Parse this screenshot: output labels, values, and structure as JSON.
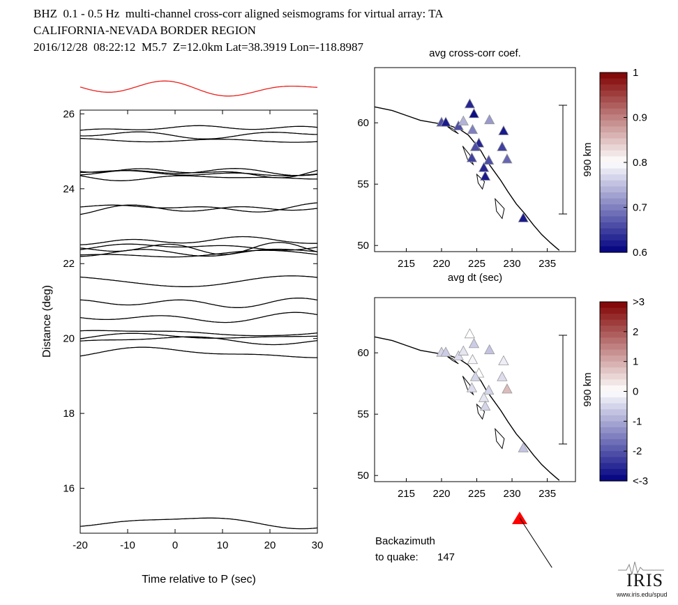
{
  "header": {
    "line1": "BHZ  0.1 - 0.5 Hz  multi-channel cross-corr aligned seismograms for virtual array: TA",
    "line2": "CALIFORNIA-NEVADA BORDER REGION",
    "line3": "2016/12/28  08:22:12  M5.7  Z=12.0km Lat=38.3919 Lon=-118.8987"
  },
  "chart_data": [
    {
      "type": "line",
      "panel": "aligned-seismograms",
      "title": "",
      "xlabel": "Time relative to P (sec)",
      "ylabel": "Distance (deg)",
      "xlim": [
        -20,
        30
      ],
      "ylim": [
        14.8,
        26.1
      ],
      "xticks": [
        -20,
        -10,
        0,
        10,
        20,
        30
      ],
      "yticks": [
        16,
        18,
        20,
        22,
        24,
        26
      ],
      "trace_distances_deg": [
        25.6,
        25.45,
        25.3,
        24.45,
        24.3,
        24.4,
        24.45,
        23.5,
        23.45,
        22.6,
        22.45,
        22.3,
        22.25,
        22.4,
        21.55,
        20.95,
        20.55,
        20.15,
        20.05,
        19.95,
        19.6,
        15.1
      ],
      "stack_trace_color": "#e8201c",
      "trace_color": "#000000"
    },
    {
      "type": "scatter",
      "panel": "avg-cross-corr-coef-map",
      "title": "avg cross-corr coef.",
      "xlabel": "avg dt (sec)",
      "ylabel": "",
      "xlim": [
        210.5,
        239
      ],
      "ylim": [
        49.5,
        64.5
      ],
      "xticks": [
        215,
        220,
        225,
        230,
        235
      ],
      "yticks": [
        50,
        55,
        60
      ],
      "scale_bar_label": "990 km",
      "colorbar": {
        "ticks": [
          "1",
          "0.9",
          "0.8",
          "0.7",
          "0.6"
        ],
        "min_color": "#000080",
        "mid_color": "#ffffff",
        "max_color": "#800000"
      },
      "stations": [
        {
          "x": 224.0,
          "y": 61.5,
          "value": 0.63
        },
        {
          "x": 220.0,
          "y": 60.0,
          "value": 0.66
        },
        {
          "x": 220.6,
          "y": 60.0,
          "value": 0.62
        },
        {
          "x": 222.4,
          "y": 59.7,
          "value": 0.66
        },
        {
          "x": 223.1,
          "y": 60.1,
          "value": 0.74
        },
        {
          "x": 224.6,
          "y": 60.7,
          "value": 0.61
        },
        {
          "x": 226.8,
          "y": 60.2,
          "value": 0.72
        },
        {
          "x": 228.8,
          "y": 59.3,
          "value": 0.62
        },
        {
          "x": 224.4,
          "y": 59.4,
          "value": 0.7
        },
        {
          "x": 225.3,
          "y": 58.3,
          "value": 0.63
        },
        {
          "x": 224.8,
          "y": 58.0,
          "value": 0.66
        },
        {
          "x": 228.6,
          "y": 58.0,
          "value": 0.65
        },
        {
          "x": 229.3,
          "y": 57.0,
          "value": 0.68
        },
        {
          "x": 224.3,
          "y": 57.1,
          "value": 0.65
        },
        {
          "x": 226.7,
          "y": 56.9,
          "value": 0.66
        },
        {
          "x": 226.0,
          "y": 56.3,
          "value": 0.63
        },
        {
          "x": 226.2,
          "y": 55.6,
          "value": 0.62
        },
        {
          "x": 231.6,
          "y": 52.2,
          "value": 0.62
        }
      ]
    },
    {
      "type": "scatter",
      "panel": "avg-dt-map",
      "title": "",
      "xlabel": "",
      "ylabel": "",
      "xlim": [
        210.5,
        239
      ],
      "ylim": [
        49.5,
        64.5
      ],
      "xticks": [
        215,
        220,
        225,
        230,
        235
      ],
      "yticks": [
        50,
        55,
        60
      ],
      "scale_bar_label": "990 km",
      "colorbar": {
        "ticks": [
          ">3",
          "2",
          "1",
          "0",
          "-1",
          "-2",
          "<-3"
        ],
        "min_color": "#000080",
        "mid_color": "#ffffff",
        "max_color": "#800000"
      },
      "stations": [
        {
          "x": 224.0,
          "y": 61.5,
          "value": 0.0
        },
        {
          "x": 220.0,
          "y": 60.0,
          "value": -0.5
        },
        {
          "x": 220.6,
          "y": 60.0,
          "value": -0.6
        },
        {
          "x": 222.4,
          "y": 59.7,
          "value": -0.4
        },
        {
          "x": 223.1,
          "y": 60.1,
          "value": -0.3
        },
        {
          "x": 224.6,
          "y": 60.7,
          "value": -0.6
        },
        {
          "x": 226.8,
          "y": 60.2,
          "value": -0.7
        },
        {
          "x": 228.8,
          "y": 59.3,
          "value": -0.2
        },
        {
          "x": 224.4,
          "y": 59.4,
          "value": -0.1
        },
        {
          "x": 225.3,
          "y": 58.3,
          "value": 0.0
        },
        {
          "x": 224.8,
          "y": 58.0,
          "value": -0.5
        },
        {
          "x": 228.6,
          "y": 58.0,
          "value": -0.4
        },
        {
          "x": 229.3,
          "y": 57.0,
          "value": 0.8
        },
        {
          "x": 224.3,
          "y": 57.1,
          "value": -0.4
        },
        {
          "x": 226.7,
          "y": 56.9,
          "value": -0.5
        },
        {
          "x": 226.0,
          "y": 56.3,
          "value": -0.3
        },
        {
          "x": 226.2,
          "y": 55.6,
          "value": -0.5
        },
        {
          "x": 231.6,
          "y": 52.2,
          "value": -0.7
        }
      ]
    }
  ],
  "backazimuth": {
    "label_line1": "Backazimuth",
    "label_line2": "to quake:",
    "value": "147",
    "degrees": 147,
    "marker_color": "#ff0000"
  },
  "logo": {
    "name": "IRIS",
    "url": "www.iris.edu/spud"
  }
}
